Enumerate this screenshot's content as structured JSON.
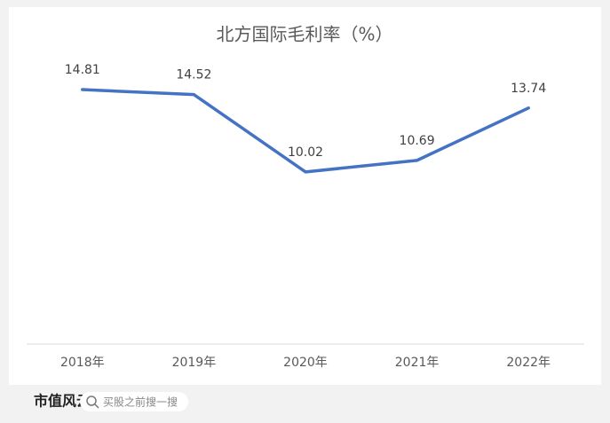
{
  "chart_data": {
    "type": "line",
    "title": "北方国际毛利率（%）",
    "categories": [
      "2018年",
      "2019年",
      "2020年",
      "2021年",
      "2022年"
    ],
    "series": [
      {
        "name": "毛利率",
        "color": "#4472c4",
        "values": [
          14.81,
          14.52,
          10.02,
          10.69,
          13.74
        ]
      }
    ],
    "ylim": [
      0,
      16
    ]
  },
  "footer": {
    "logo": "市值风云",
    "search": "买股之前搜一搜"
  }
}
